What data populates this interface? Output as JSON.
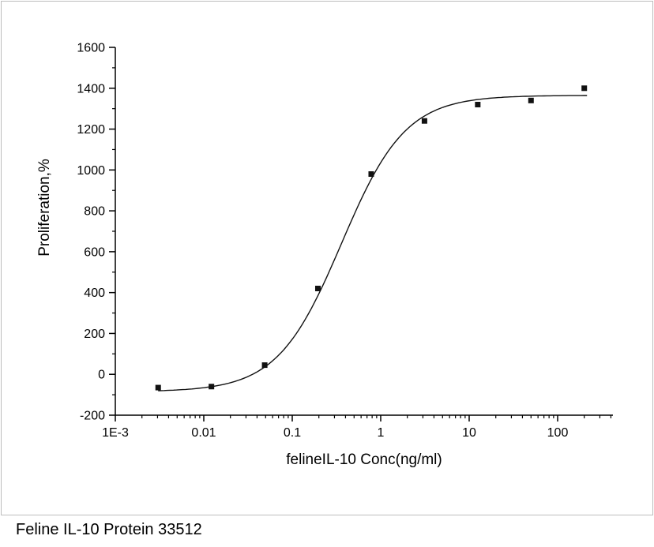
{
  "caption": "Feline IL-10 Protein 33512",
  "chart_data": {
    "type": "scatter",
    "title": "",
    "xlabel": "felineIL-10 Conc(ng/ml)",
    "ylabel": "Proliferation,%",
    "x_scale": "log",
    "xlim_log10": [
      -3,
      2.625
    ],
    "ylim": [
      -200,
      1600
    ],
    "y_major_step": 200,
    "y_minor_step": 100,
    "x_major_ticks": [
      {
        "value": 0.001,
        "label": "1E-3"
      },
      {
        "value": 0.01,
        "label": "0.01"
      },
      {
        "value": 0.1,
        "label": "0.1"
      },
      {
        "value": 1,
        "label": "1"
      },
      {
        "value": 10,
        "label": "10"
      },
      {
        "value": 100,
        "label": "100"
      }
    ],
    "points": {
      "x": [
        0.00305,
        0.0122,
        0.0488,
        0.195,
        0.781,
        3.125,
        12.5,
        50,
        200
      ],
      "y": [
        -65,
        -60,
        45,
        420,
        980,
        1240,
        1320,
        1340,
        1400
      ]
    },
    "fit_curve": {
      "model": "4PL",
      "bottom": -85,
      "top": 1365,
      "ec50": 0.36,
      "hill": 1.2,
      "x_start": 0.00305,
      "x_end": 215
    },
    "marker": {
      "shape": "square",
      "size": 7,
      "color": "#111111"
    },
    "line_color": "#111111",
    "axis_color": "#000000",
    "legend": "none",
    "grid": "off"
  }
}
